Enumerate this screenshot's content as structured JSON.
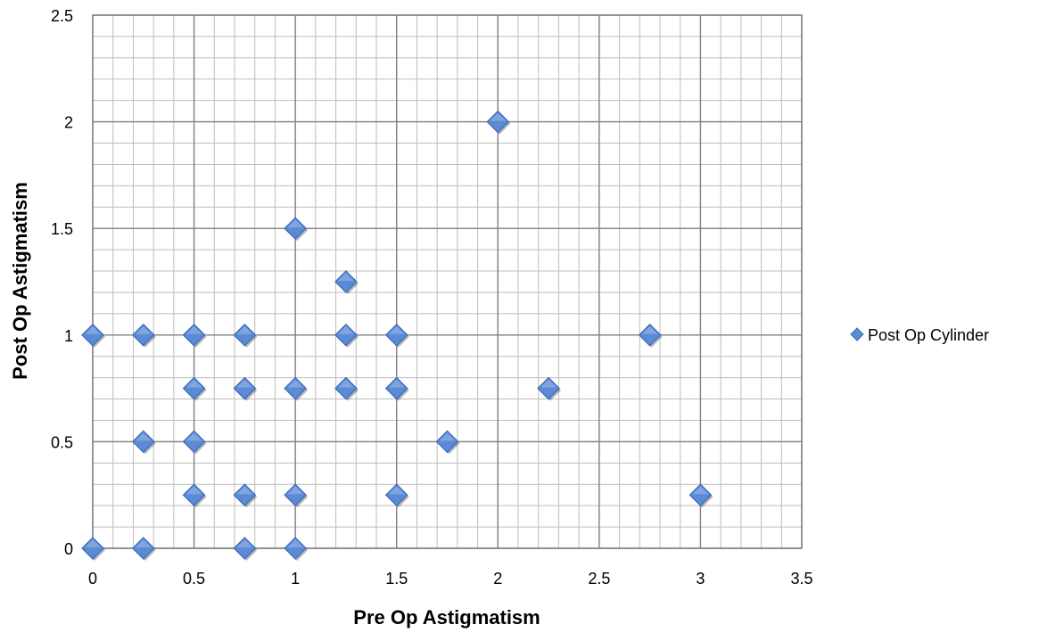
{
  "chart_data": {
    "type": "scatter",
    "title": "",
    "xlabel": "Pre Op Astigmatism",
    "ylabel": "Post Op Astigmatism",
    "xlim": [
      0,
      3.5
    ],
    "ylim": [
      0,
      2.5
    ],
    "x_ticks": [
      "0",
      "0.5",
      "1",
      "1.5",
      "2",
      "2.5",
      "3",
      "3.5"
    ],
    "y_ticks": [
      "0",
      "0.5",
      "1",
      "1.5",
      "2",
      "2.5"
    ],
    "grid": true,
    "legend_position": "right",
    "marker": "diamond",
    "series_color": "#5B8BD5",
    "series": [
      {
        "name": "Post Op Cylinder",
        "points": [
          {
            "x": 0,
            "y": 0
          },
          {
            "x": 0.25,
            "y": 0
          },
          {
            "x": 0.75,
            "y": 0
          },
          {
            "x": 1,
            "y": 0
          },
          {
            "x": 0.5,
            "y": 0.25
          },
          {
            "x": 0.75,
            "y": 0.25
          },
          {
            "x": 1,
            "y": 0.25
          },
          {
            "x": 1.5,
            "y": 0.25
          },
          {
            "x": 3,
            "y": 0.25
          },
          {
            "x": 0.25,
            "y": 0.5
          },
          {
            "x": 0.5,
            "y": 0.5
          },
          {
            "x": 1.75,
            "y": 0.5
          },
          {
            "x": 0.5,
            "y": 0.75
          },
          {
            "x": 0.75,
            "y": 0.75
          },
          {
            "x": 1,
            "y": 0.75
          },
          {
            "x": 1.25,
            "y": 0.75
          },
          {
            "x": 1.5,
            "y": 0.75
          },
          {
            "x": 2.25,
            "y": 0.75
          },
          {
            "x": 0,
            "y": 1
          },
          {
            "x": 0.25,
            "y": 1
          },
          {
            "x": 0.5,
            "y": 1
          },
          {
            "x": 0.75,
            "y": 1
          },
          {
            "x": 1.25,
            "y": 1
          },
          {
            "x": 1.5,
            "y": 1
          },
          {
            "x": 2.75,
            "y": 1
          },
          {
            "x": 1.25,
            "y": 1.25
          },
          {
            "x": 1,
            "y": 1.5
          },
          {
            "x": 2,
            "y": 2
          }
        ]
      }
    ]
  }
}
